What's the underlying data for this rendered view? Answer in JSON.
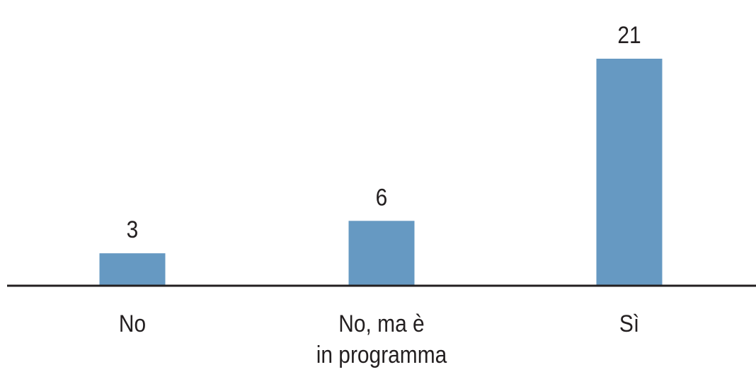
{
  "chart_data": {
    "type": "bar",
    "categories": [
      "No",
      "No, ma è\nin programma",
      "Sì"
    ],
    "values": [
      3,
      6,
      21
    ],
    "color": "#6699c2"
  }
}
